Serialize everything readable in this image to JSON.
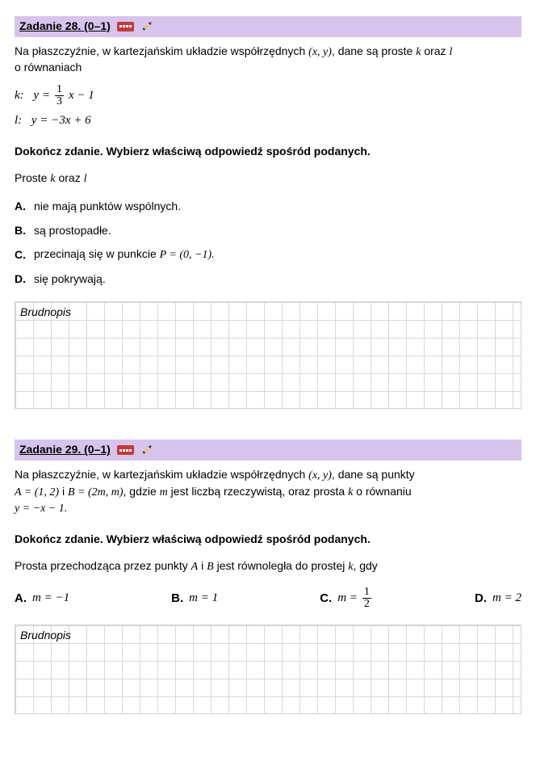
{
  "task1": {
    "header": "Zadanie 28. (0–1)",
    "intro_a": "Na płaszczyźnie, w kartezjańskim układzie współrzędnych ",
    "intro_coords": "(x, y)",
    "intro_b": ", dane są proste ",
    "intro_k": "k",
    "intro_c": " oraz ",
    "intro_l": "l",
    "intro_d": " o równaniach",
    "eq_k_label": "k:",
    "eq_k_lhs": "y =",
    "eq_k_frac_num": "1",
    "eq_k_frac_den": "3",
    "eq_k_tail": "x − 1",
    "eq_l_label": "l:",
    "eq_l": "y = −3x + 6",
    "instruction": "Dokończ zdanie. Wybierz właściwą odpowiedź spośród podanych.",
    "subtext_a": "Proste ",
    "subtext_k": "k",
    "subtext_b": " oraz ",
    "subtext_l": "l",
    "optA": "nie mają punktów wspólnych.",
    "optB": "są prostopadłe.",
    "optC_a": "przecinają się w punkcie ",
    "optC_p": "P = (0, −1).",
    "optD": "się pokrywają.",
    "labelA": "A.",
    "labelB": "B.",
    "labelC": "C.",
    "labelD": "D.",
    "brudnopis": "Brudnopis"
  },
  "task2": {
    "header": "Zadanie 29. (0–1)",
    "line1_a": "Na płaszczyźnie, w kartezjańskim układzie współrzędnych ",
    "line1_coords": "(x, y)",
    "line1_b": ", dane są punkty",
    "line2_A": "A = (1, 2)",
    "line2_and": " i ",
    "line2_B": "B = (2m, m)",
    "line2_c": ", gdzie ",
    "line2_m": "m",
    "line2_d": " jest liczbą rzeczywistą, oraz prosta ",
    "line2_k": "k",
    "line2_e": " o równaniu",
    "line3": "y = −x − 1.",
    "instruction": "Dokończ zdanie. Wybierz właściwą odpowiedź spośród podanych.",
    "sub_a": "Prosta przechodząca przez punkty ",
    "sub_A": "A",
    "sub_b": " i ",
    "sub_B": "B",
    "sub_c": " jest równoległa do prostej ",
    "sub_k": "k",
    "sub_d": ", gdy",
    "labelA": "A.",
    "labelB": "B.",
    "labelC": "C.",
    "labelD": "D.",
    "optA": "m = −1",
    "optB": "m = 1",
    "optC_lhs": "m =",
    "optC_num": "1",
    "optC_den": "2",
    "optD": "m = 2",
    "brudnopis": "Brudnopis"
  }
}
